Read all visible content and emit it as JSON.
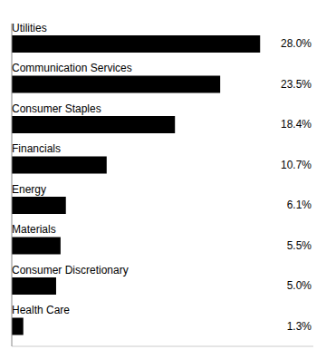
{
  "chart_data": {
    "type": "bar",
    "orientation": "horizontal",
    "categories": [
      "Utilities",
      "Communication Services",
      "Consumer Staples",
      "Financials",
      "Energy",
      "Materials",
      "Consumer Discretionary",
      "Health Care"
    ],
    "values": [
      28.0,
      23.5,
      18.4,
      10.7,
      6.1,
      5.5,
      5.0,
      1.3
    ],
    "value_labels": [
      "28.0%",
      "23.5%",
      "18.4%",
      "10.7%",
      "6.1%",
      "5.5%",
      "5.0%",
      "1.3%"
    ],
    "data_labels": true,
    "color": "#000000",
    "xlim": [
      0,
      34
    ],
    "tick_labels": false
  }
}
